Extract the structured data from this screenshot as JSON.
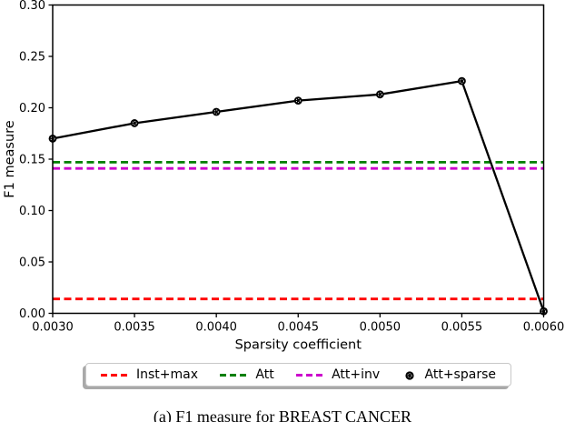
{
  "figure": {
    "background": "#ffffff",
    "caption": "(a) F1 measure for BREAST CANCER"
  },
  "chart_data": {
    "type": "line",
    "title": "",
    "xlabel": "Sparsity coefficient",
    "ylabel": "F1 measure",
    "xlim": [
      0.003,
      0.006
    ],
    "ylim": [
      0.0,
      0.3
    ],
    "xticks": [
      "0.0030",
      "0.0035",
      "0.0040",
      "0.0045",
      "0.0050",
      "0.0055",
      "0.0060"
    ],
    "yticks": [
      "0.00",
      "0.05",
      "0.10",
      "0.15",
      "0.20",
      "0.25",
      "0.30"
    ],
    "grid": false,
    "x": [
      0.003,
      0.0035,
      0.004,
      0.0045,
      0.005,
      0.0055,
      0.006
    ],
    "series": [
      {
        "name": "Inst+max",
        "type": "hline",
        "color": "#ff0000",
        "linestyle": "dashed",
        "value": 0.014
      },
      {
        "name": "Att",
        "type": "hline",
        "color": "#008000",
        "linestyle": "dashed",
        "value": 0.147
      },
      {
        "name": "Att+inv",
        "type": "hline",
        "color": "#cc00cc",
        "linestyle": "dashed",
        "value": 0.141
      },
      {
        "name": "Att+sparse",
        "type": "line",
        "color": "#000000",
        "linestyle": "solid",
        "marker": "filled-circle",
        "values": [
          0.17,
          0.185,
          0.196,
          0.207,
          0.213,
          0.226,
          0.002
        ]
      }
    ],
    "legend": {
      "position": "bottom-center",
      "entries": [
        {
          "label": "Inst+max",
          "color": "#ff0000",
          "style": "dashed"
        },
        {
          "label": "Att",
          "color": "#008000",
          "style": "dashed"
        },
        {
          "label": "Att+inv",
          "color": "#cc00cc",
          "style": "dashed"
        },
        {
          "label": "Att+sparse",
          "color": "#000000",
          "style": "marker"
        }
      ]
    }
  }
}
